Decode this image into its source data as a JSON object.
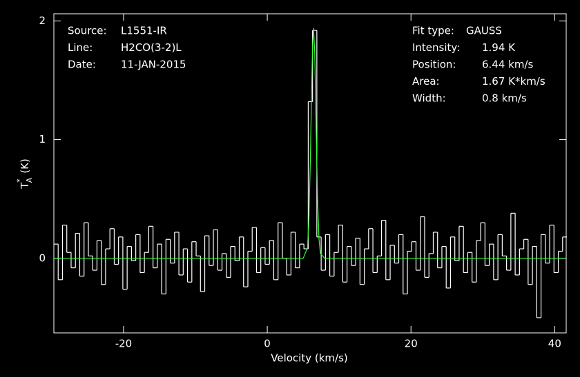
{
  "chart_data": {
    "type": "line",
    "xlabel": "Velocity (km/s)",
    "ylabel": {
      "main": "T",
      "sup": "*",
      "sub": "A",
      "unit": "(K)"
    },
    "info_left": [
      [
        "Source:",
        "L1551-IR"
      ],
      [
        "Line:",
        "H2CO(3-2)L"
      ],
      [
        "Date:",
        "11-JAN-2015"
      ]
    ],
    "info_right": [
      [
        "Fit type:",
        "GAUSS"
      ],
      [
        "Intensity:",
        "1.94 K"
      ],
      [
        "Position:",
        "6.44 km/s"
      ],
      [
        "Area:",
        "1.67 K*km/s"
      ],
      [
        "Width:",
        "0.8 km/s"
      ]
    ],
    "xlim": [
      -29.7,
      41.6
    ],
    "ylim": [
      -0.628,
      2.06
    ],
    "xticks": [
      -20,
      0,
      20,
      40
    ],
    "yticks": [
      0,
      1,
      2
    ],
    "series": [
      {
        "color": "#ffffff",
        "step": true,
        "x": [
          -29.4,
          -28.8,
          -28.2,
          -27.6,
          -27,
          -26.4,
          -25.8,
          -25.2,
          -24.6,
          -24,
          -23.4,
          -22.8,
          -22.2,
          -21.6,
          -21,
          -20.4,
          -19.8,
          -19.2,
          -18.6,
          -18,
          -17.4,
          -16.8,
          -16.2,
          -15.6,
          -15,
          -14.4,
          -13.8,
          -13.2,
          -12.6,
          -12,
          -11.4,
          -10.8,
          -10.2,
          -9.6,
          -9,
          -8.4,
          -7.8,
          -7.2,
          -6.6,
          -6,
          -5.4,
          -4.8,
          -4.2,
          -3.6,
          -3,
          -2.4,
          -1.8,
          -1.2,
          -0.6,
          0,
          0.6,
          1.2,
          1.8,
          2.4,
          3,
          3.6,
          4.2,
          4.8,
          5.4,
          6,
          6.6,
          7.2,
          7.8,
          8.4,
          9,
          9.6,
          10.2,
          10.8,
          11.4,
          12,
          12.6,
          13.2,
          13.8,
          14.4,
          15,
          15.6,
          16.2,
          16.8,
          17.4,
          18,
          18.6,
          19.2,
          19.8,
          20.4,
          21,
          21.6,
          22.2,
          22.8,
          23.4,
          24,
          24.6,
          25.2,
          25.8,
          26.4,
          27,
          27.6,
          28.2,
          28.8,
          29.4,
          30,
          30.6,
          31.2,
          31.8,
          32.4,
          33,
          33.6,
          34.2,
          34.8,
          35.4,
          36,
          36.6,
          37.2,
          37.8,
          38.4,
          39,
          39.6,
          40.2,
          40.8,
          41.4
        ],
        "values": [
          0.12,
          -0.18,
          0.28,
          0.05,
          -0.08,
          0.21,
          -0.15,
          0.3,
          0.02,
          -0.1,
          0.15,
          -0.22,
          0.08,
          0.25,
          -0.05,
          0.18,
          -0.26,
          0.1,
          -0.02,
          0.2,
          -0.12,
          0.05,
          0.27,
          -0.08,
          0.12,
          -0.3,
          0.16,
          -0.04,
          0.22,
          -0.14,
          0.08,
          -0.2,
          0.14,
          0.02,
          -0.28,
          0.19,
          -0.06,
          0.24,
          -0.1,
          0.04,
          -0.16,
          0.1,
          -0.02,
          0.18,
          -0.24,
          0.06,
          0.26,
          -0.12,
          0.09,
          -0.05,
          0.15,
          -0.18,
          0.3,
          0,
          -0.14,
          0.22,
          -0.08,
          0.12,
          0.08,
          1.32,
          1.92,
          0.18,
          -0.1,
          0.2,
          -0.15,
          0.05,
          0.28,
          -0.2,
          0.1,
          -0.06,
          0.17,
          -0.22,
          0.08,
          0.25,
          -0.12,
          0.02,
          0.32,
          -0.18,
          0.11,
          -0.04,
          0.2,
          -0.3,
          0.06,
          0.14,
          -0.1,
          0.35,
          -0.16,
          0.04,
          0.22,
          -0.08,
          0.1,
          -0.25,
          0.18,
          -0.02,
          0.27,
          -0.12,
          0.05,
          -0.2,
          0.15,
          0.3,
          -0.06,
          0.12,
          -0.18,
          0.2,
          0.02,
          -0.1,
          0.38,
          -0.14,
          0.08,
          0.16,
          -0.22,
          0.1,
          -0.5,
          0.2,
          -0.04,
          0.28,
          -0.12,
          0.06,
          0.18
        ]
      },
      {
        "color": "#33ff33",
        "step": false,
        "x": [
          -29.7,
          5,
          5.6,
          5.8,
          6,
          6.2,
          6.3,
          6.44,
          6.6,
          6.8,
          7,
          7.2,
          7.4,
          8,
          41.6
        ],
        "values": [
          0,
          0,
          0.09,
          0.33,
          0.84,
          1.51,
          1.78,
          1.94,
          1.74,
          1.11,
          0.5,
          0.16,
          0.04,
          0,
          0
        ]
      }
    ]
  }
}
